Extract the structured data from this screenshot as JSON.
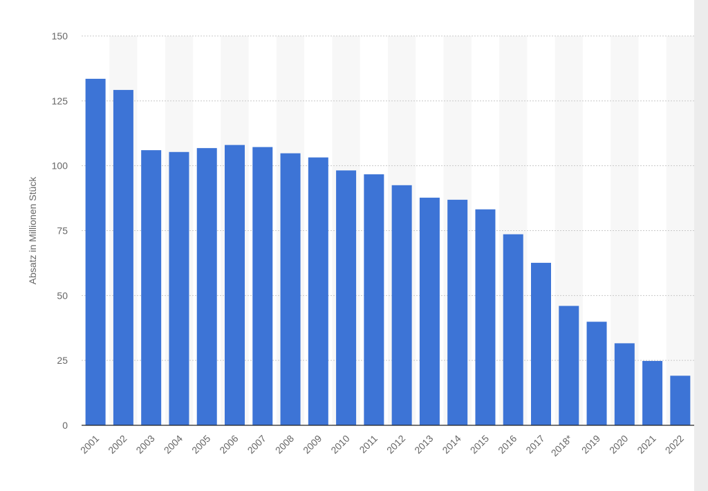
{
  "chart_data": {
    "type": "bar",
    "title": "",
    "xlabel": "",
    "ylabel": "Absatz in Millionen Stück",
    "ylim": [
      0,
      150
    ],
    "yticks": [
      0,
      25,
      50,
      75,
      100,
      125,
      150
    ],
    "grid": true,
    "legend": "none",
    "bar_color": "#3d74d6",
    "categories": [
      "2001",
      "2002",
      "2003",
      "2004",
      "2005",
      "2006",
      "2007",
      "2008",
      "2009",
      "2010",
      "2011",
      "2012",
      "2013",
      "2014",
      "2015",
      "2016",
      "2017",
      "2018*",
      "2019",
      "2020",
      "2021",
      "2022"
    ],
    "values": [
      133.5,
      129.2,
      106,
      105.3,
      106.8,
      108,
      107.2,
      104.8,
      103.2,
      98.2,
      96.7,
      92.5,
      87.7,
      86.9,
      83.2,
      73.6,
      62.6,
      46,
      39.9,
      31.6,
      24.8,
      19.1
    ]
  }
}
